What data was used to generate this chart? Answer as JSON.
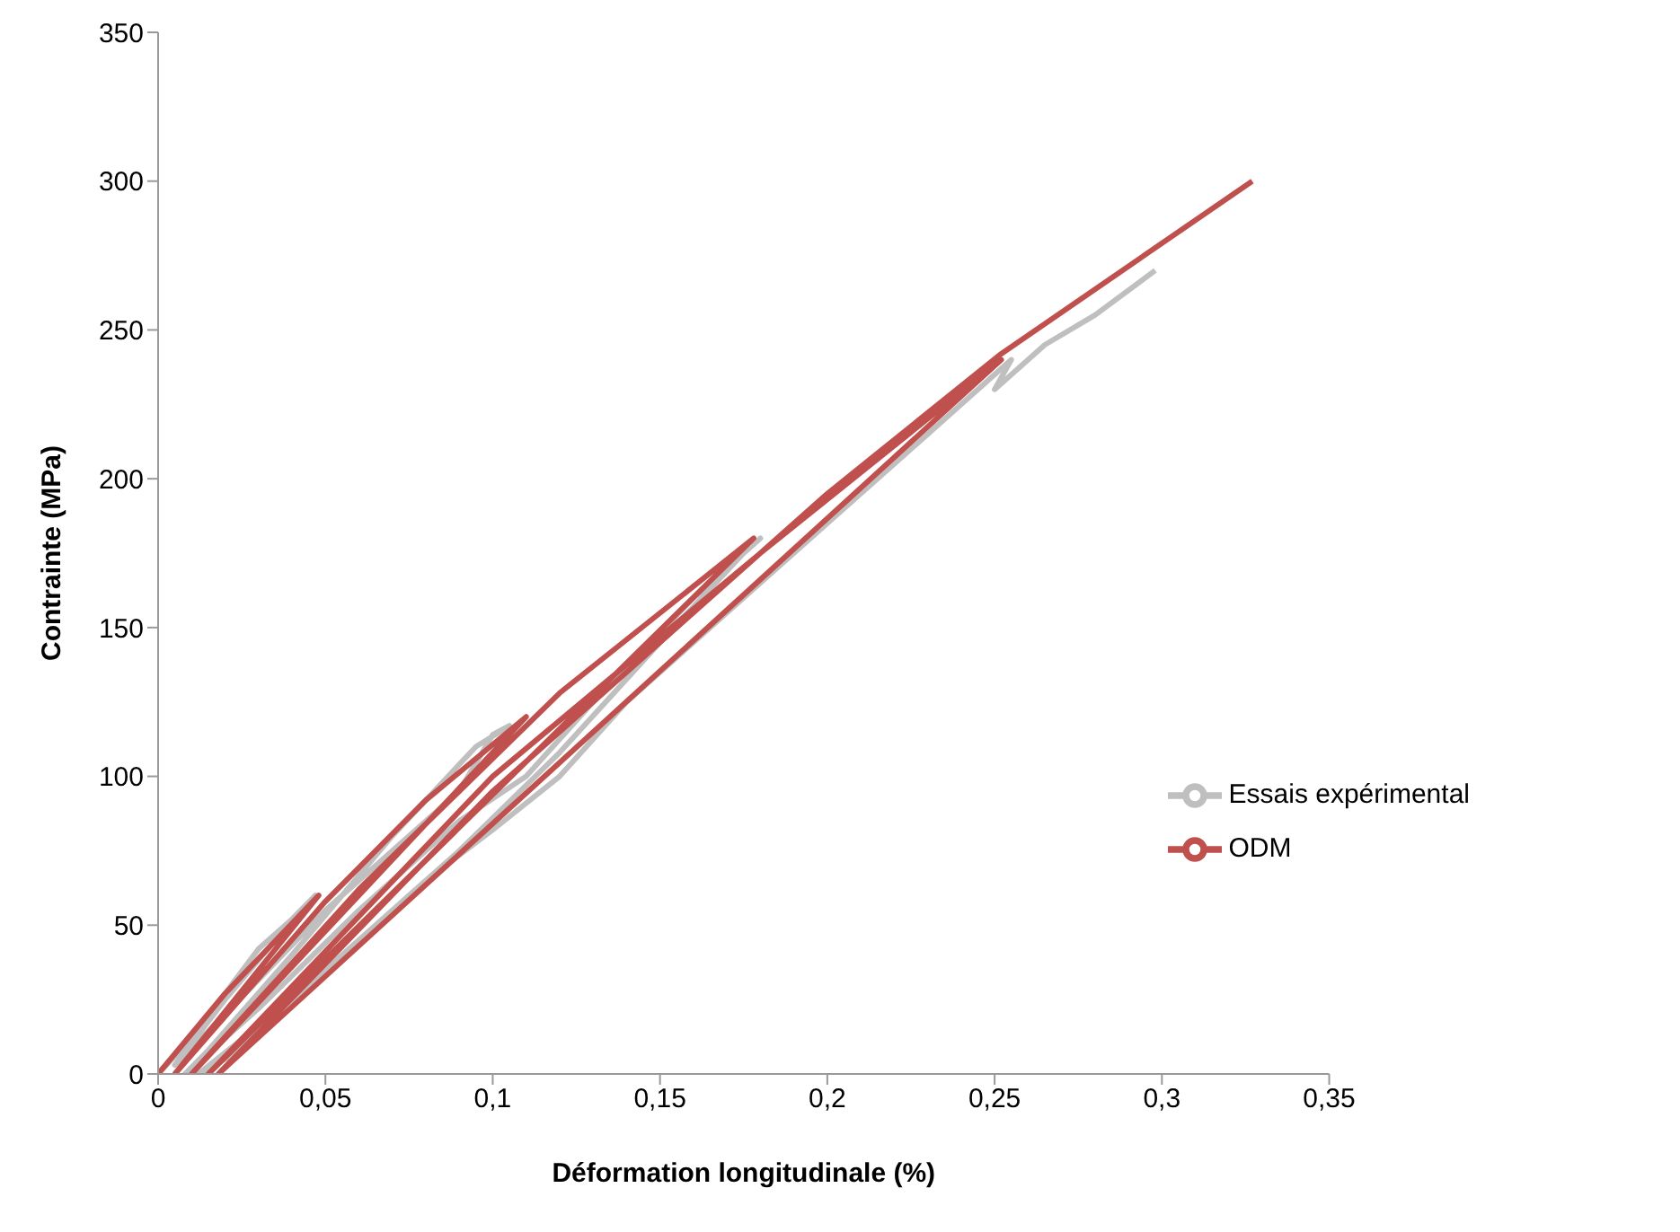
{
  "chart_data": {
    "type": "line",
    "xlabel": "Déformation longitudinale (%)",
    "ylabel": "Contrainte (MPa)",
    "xlim": [
      0,
      0.35
    ],
    "ylim": [
      0,
      350
    ],
    "xticks": [
      0,
      {
        "value": 0.05,
        "label": "0,05"
      },
      {
        "value": 0.1,
        "label": "0,1"
      },
      {
        "value": 0.15,
        "label": "0,15"
      },
      {
        "value": 0.2,
        "label": "0,2"
      },
      {
        "value": 0.25,
        "label": "0,25"
      },
      {
        "value": 0.3,
        "label": "0,3"
      },
      {
        "value": 0.35,
        "label": "0,35"
      }
    ],
    "yticks": [
      0,
      50,
      100,
      150,
      200,
      250,
      300,
      350
    ],
    "grid": false,
    "legend": "right",
    "marker": "none",
    "line_style": "solid",
    "series": [
      {
        "name": "Essais expérimental",
        "color": "#bfbfbf",
        "x": [
          0,
          0.01,
          0.02,
          0.03,
          0.04,
          0.047,
          0.035,
          0.02,
          0.005,
          0.02,
          0.05,
          0.07,
          0.09,
          0.1,
          0.105,
          0.095,
          0.07,
          0.04,
          0.015,
          0.008,
          0.03,
          0.06,
          0.09,
          0.11,
          0.13,
          0.16,
          0.18,
          0.175,
          0.15,
          0.12,
          0.09,
          0.05,
          0.02,
          0.012,
          0.04,
          0.08,
          0.1,
          0.12,
          0.14,
          0.17,
          0.2,
          0.23,
          0.255,
          0.25,
          0.265,
          0.28,
          0.298
        ],
        "values": [
          0,
          12,
          27,
          42,
          52,
          60,
          45,
          25,
          3,
          20,
          55,
          75,
          95,
          114,
          117,
          110,
          80,
          40,
          8,
          0,
          22,
          55,
          85,
          100,
          125,
          160,
          180,
          175,
          145,
          108,
          75,
          35,
          5,
          0,
          25,
          65,
          82,
          100,
          125,
          155,
          185,
          215,
          240,
          230,
          245,
          255,
          270
        ]
      },
      {
        "name": "ODM",
        "color": "#c0504d",
        "x": [
          0,
          0.02,
          0.048,
          0.005,
          0.05,
          0.08,
          0.11,
          0.01,
          0.06,
          0.12,
          0.178,
          0.015,
          0.1,
          0.18,
          0.252,
          0.018,
          0.1,
          0.2,
          0.252,
          0.327
        ],
        "values": [
          0,
          27,
          60,
          0,
          58,
          92,
          120,
          0,
          62,
          128,
          180,
          0,
          100,
          175,
          240,
          0,
          95,
          195,
          242,
          300
        ]
      }
    ]
  }
}
